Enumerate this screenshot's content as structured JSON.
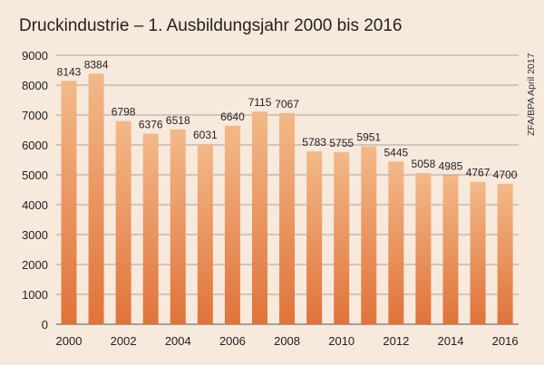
{
  "chart_data": {
    "type": "bar",
    "title": "Druckindustrie – 1. Ausbildungsjahr 2000 bis 2016",
    "source": "ZFA/BPA April 2017",
    "categories": [
      "2000",
      "2001",
      "2002",
      "2003",
      "2004",
      "2005",
      "2006",
      "2007",
      "2008",
      "2009",
      "2010",
      "2011",
      "2012",
      "2013",
      "2014",
      "2015",
      "2016"
    ],
    "values": [
      8143,
      8384,
      6798,
      6376,
      6518,
      6031,
      6640,
      7115,
      7067,
      5783,
      5755,
      5951,
      5445,
      5058,
      4985,
      4767,
      4700
    ],
    "x_tick_labels": [
      "2000",
      "2002",
      "2004",
      "2006",
      "2008",
      "2010",
      "2012",
      "2014",
      "2016"
    ],
    "y_tick_labels": [
      "0",
      "1000",
      "2000",
      "3000",
      "4000",
      "5000",
      "6000",
      "7000",
      "8000",
      "9000"
    ],
    "ylim": [
      0,
      9000
    ],
    "grid": true,
    "bar_color_top": "#f3b989",
    "bar_color_bottom": "#e0733a",
    "background_color": "#f7e9dc"
  }
}
